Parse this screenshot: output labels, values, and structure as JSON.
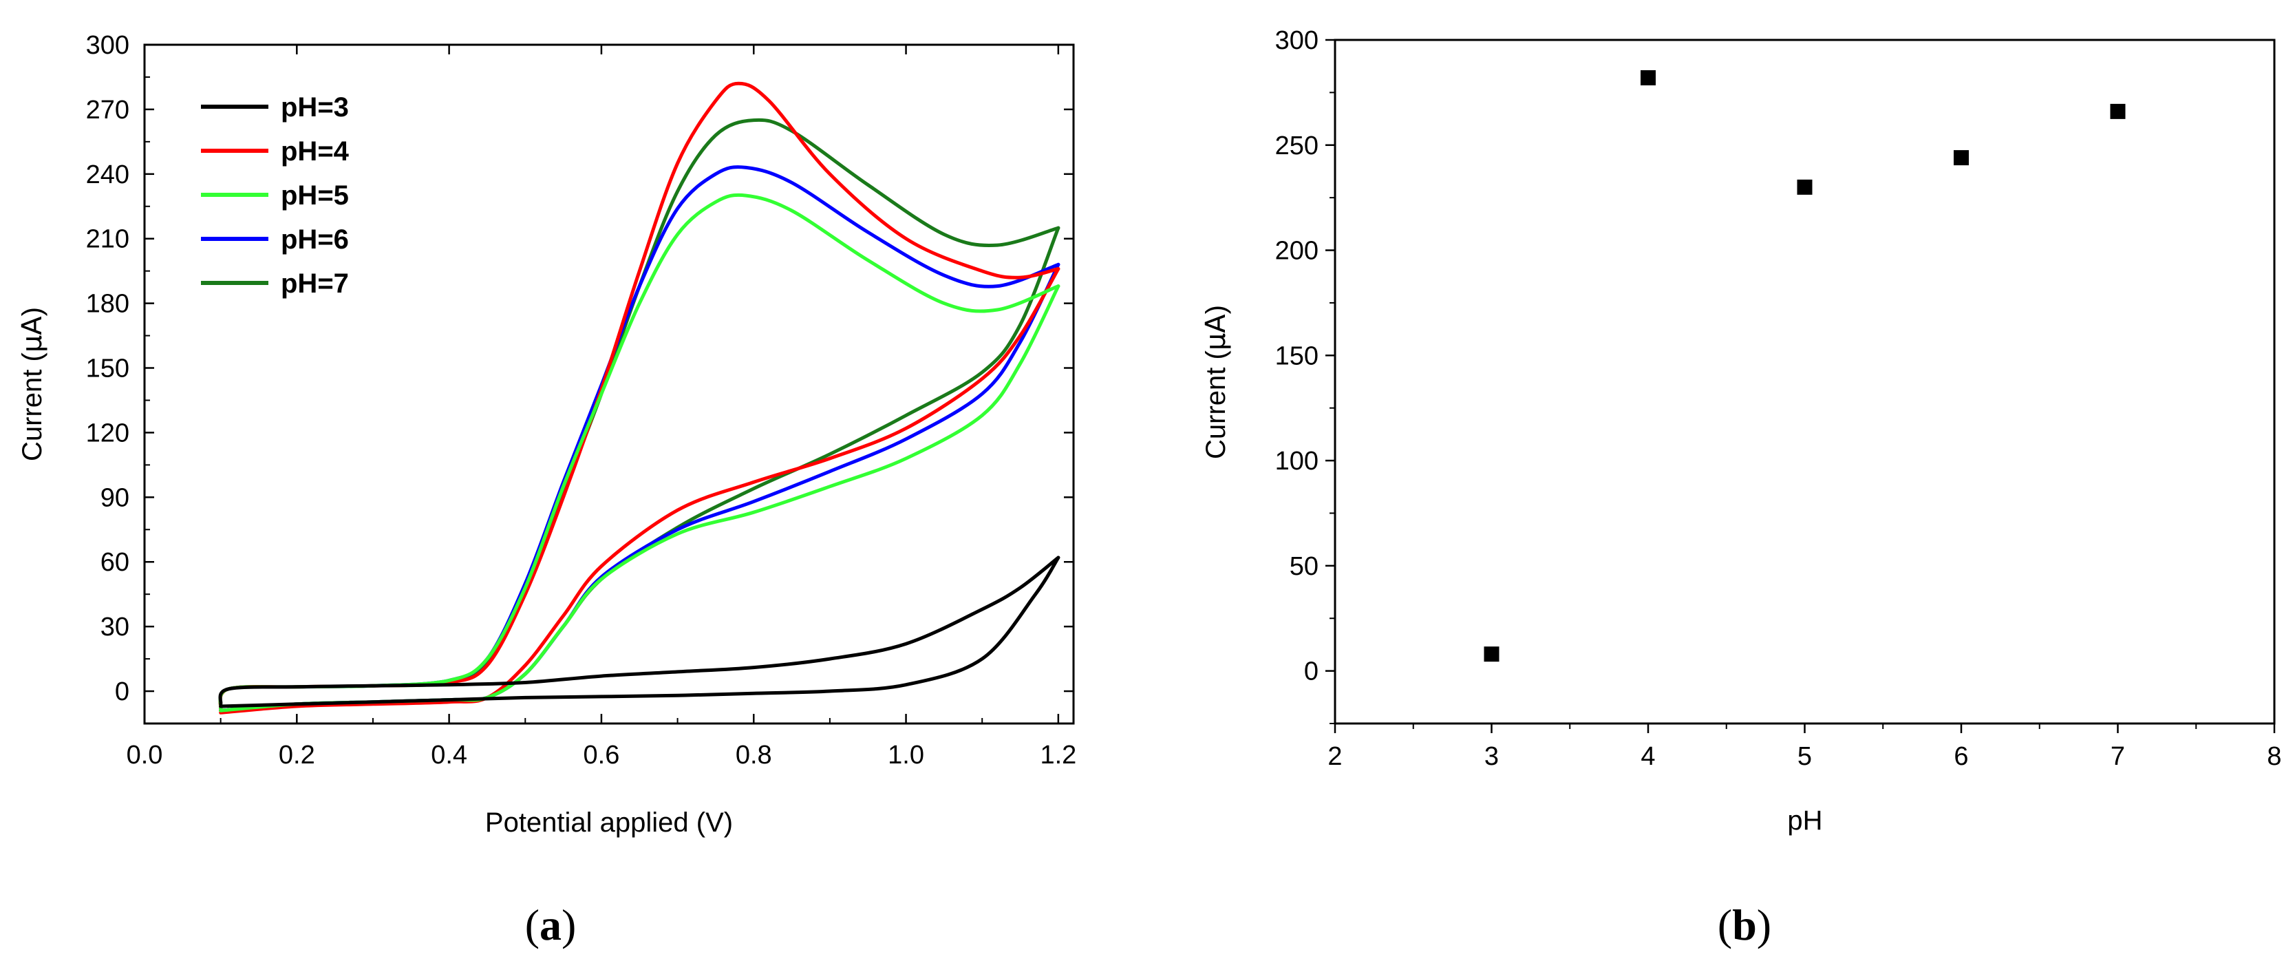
{
  "panels": [
    {
      "label": "a"
    },
    {
      "label": "b"
    }
  ],
  "chart_data": [
    {
      "type": "line",
      "panel": "a",
      "title": "",
      "xlabel": "Potential applied (V)",
      "ylabel_prefix": "Current (",
      "ylabel_unit": "μA",
      "ylabel_suffix": ")",
      "xlim": [
        0.0,
        1.22
      ],
      "ylim": [
        -15,
        300
      ],
      "xticks": [
        "0.0",
        "0.2",
        "0.4",
        "0.6",
        "0.8",
        "1.0",
        "1.2"
      ],
      "yticks": [
        "0",
        "30",
        "60",
        "90",
        "120",
        "150",
        "180",
        "210",
        "240",
        "270",
        "300"
      ],
      "legend_position": "top-left",
      "series": [
        {
          "name": "pH=3",
          "color": "#000000",
          "forward": [
            [
              0.1,
              -6
            ],
            [
              0.11,
              1
            ],
            [
              0.2,
              2
            ],
            [
              0.3,
              2.5
            ],
            [
              0.4,
              3
            ],
            [
              0.5,
              4
            ],
            [
              0.6,
              7
            ],
            [
              0.7,
              9
            ],
            [
              0.8,
              11
            ],
            [
              0.9,
              15
            ],
            [
              1.0,
              22
            ],
            [
              1.1,
              38
            ],
            [
              1.15,
              48
            ],
            [
              1.2,
              62
            ]
          ],
          "reverse": [
            [
              1.2,
              62
            ],
            [
              1.17,
              45
            ],
            [
              1.1,
              15
            ],
            [
              1.0,
              3
            ],
            [
              0.9,
              0
            ],
            [
              0.8,
              -1
            ],
            [
              0.7,
              -2
            ],
            [
              0.6,
              -2.5
            ],
            [
              0.5,
              -3
            ],
            [
              0.4,
              -4
            ],
            [
              0.3,
              -5
            ],
            [
              0.2,
              -6
            ],
            [
              0.1,
              -7
            ]
          ]
        },
        {
          "name": "pH=4",
          "color": "#ff0000",
          "forward": [
            [
              0.1,
              -9
            ],
            [
              0.11,
              1
            ],
            [
              0.2,
              2
            ],
            [
              0.3,
              2.5
            ],
            [
              0.4,
              4
            ],
            [
              0.45,
              12
            ],
            [
              0.5,
              45
            ],
            [
              0.55,
              90
            ],
            [
              0.6,
              140
            ],
            [
              0.65,
              195
            ],
            [
              0.7,
              245
            ],
            [
              0.75,
              274
            ],
            [
              0.78,
              282
            ],
            [
              0.82,
              274
            ],
            [
              0.9,
              240
            ],
            [
              1.0,
              210
            ],
            [
              1.1,
              195
            ],
            [
              1.15,
              192
            ],
            [
              1.2,
              196
            ]
          ],
          "reverse": [
            [
              1.2,
              196
            ],
            [
              1.15,
              165
            ],
            [
              1.1,
              145
            ],
            [
              1.0,
              122
            ],
            [
              0.9,
              108
            ],
            [
              0.8,
              97
            ],
            [
              0.7,
              84
            ],
            [
              0.6,
              58
            ],
            [
              0.55,
              35
            ],
            [
              0.5,
              12
            ],
            [
              0.45,
              -3
            ],
            [
              0.4,
              -5
            ],
            [
              0.3,
              -6
            ],
            [
              0.2,
              -7
            ],
            [
              0.1,
              -10
            ]
          ]
        },
        {
          "name": "pH=5",
          "color": "#33ff33",
          "forward": [
            [
              0.1,
              -8
            ],
            [
              0.11,
              1
            ],
            [
              0.2,
              2
            ],
            [
              0.3,
              2.5
            ],
            [
              0.4,
              5
            ],
            [
              0.45,
              15
            ],
            [
              0.5,
              48
            ],
            [
              0.55,
              95
            ],
            [
              0.6,
              138
            ],
            [
              0.65,
              180
            ],
            [
              0.7,
              212
            ],
            [
              0.75,
              227
            ],
            [
              0.79,
              230
            ],
            [
              0.85,
              223
            ],
            [
              0.95,
              200
            ],
            [
              1.05,
              180
            ],
            [
              1.12,
              177
            ],
            [
              1.2,
              188
            ]
          ],
          "reverse": [
            [
              1.2,
              188
            ],
            [
              1.15,
              152
            ],
            [
              1.1,
              128
            ],
            [
              1.0,
              108
            ],
            [
              0.9,
              95
            ],
            [
              0.8,
              83
            ],
            [
              0.7,
              73
            ],
            [
              0.6,
              52
            ],
            [
              0.55,
              30
            ],
            [
              0.5,
              8
            ],
            [
              0.45,
              -3
            ],
            [
              0.4,
              -4
            ],
            [
              0.3,
              -5
            ],
            [
              0.2,
              -6
            ],
            [
              0.1,
              -9
            ]
          ]
        },
        {
          "name": "pH=6",
          "color": "#0000ff",
          "forward": [
            [
              0.1,
              -8
            ],
            [
              0.11,
              1
            ],
            [
              0.2,
              2
            ],
            [
              0.3,
              2.5
            ],
            [
              0.4,
              5
            ],
            [
              0.45,
              15
            ],
            [
              0.5,
              50
            ],
            [
              0.55,
              97
            ],
            [
              0.6,
              142
            ],
            [
              0.65,
              188
            ],
            [
              0.7,
              224
            ],
            [
              0.75,
              240
            ],
            [
              0.79,
              243
            ],
            [
              0.85,
              236
            ],
            [
              0.95,
              213
            ],
            [
              1.05,
              193
            ],
            [
              1.12,
              188
            ],
            [
              1.2,
              198
            ]
          ],
          "reverse": [
            [
              1.2,
              198
            ],
            [
              1.15,
              162
            ],
            [
              1.1,
              138
            ],
            [
              1.0,
              117
            ],
            [
              0.9,
              102
            ],
            [
              0.8,
              88
            ],
            [
              0.7,
              75
            ],
            [
              0.6,
              53
            ],
            [
              0.55,
              30
            ],
            [
              0.5,
              8
            ],
            [
              0.45,
              -3
            ],
            [
              0.4,
              -4
            ],
            [
              0.3,
              -5
            ],
            [
              0.2,
              -6
            ],
            [
              0.1,
              -9
            ]
          ]
        },
        {
          "name": "pH=7",
          "color": "#1a7a1a",
          "forward": [
            [
              0.1,
              -8
            ],
            [
              0.11,
              1
            ],
            [
              0.2,
              2
            ],
            [
              0.3,
              2.5
            ],
            [
              0.4,
              4
            ],
            [
              0.45,
              13
            ],
            [
              0.5,
              47
            ],
            [
              0.55,
              92
            ],
            [
              0.6,
              138
            ],
            [
              0.65,
              188
            ],
            [
              0.7,
              232
            ],
            [
              0.75,
              258
            ],
            [
              0.8,
              265
            ],
            [
              0.85,
              260
            ],
            [
              0.95,
              235
            ],
            [
              1.05,
              212
            ],
            [
              1.12,
              207
            ],
            [
              1.2,
              215
            ]
          ],
          "reverse": [
            [
              1.2,
              215
            ],
            [
              1.15,
              170
            ],
            [
              1.1,
              148
            ],
            [
              1.0,
              128
            ],
            [
              0.9,
              110
            ],
            [
              0.8,
              94
            ],
            [
              0.7,
              76
            ],
            [
              0.6,
              52
            ],
            [
              0.55,
              30
            ],
            [
              0.5,
              8
            ],
            [
              0.45,
              -3
            ],
            [
              0.4,
              -4
            ],
            [
              0.3,
              -5
            ],
            [
              0.2,
              -6
            ],
            [
              0.1,
              -9
            ]
          ]
        }
      ]
    },
    {
      "type": "scatter",
      "panel": "b",
      "title": "",
      "xlabel": "pH",
      "ylabel_prefix": "Current (",
      "ylabel_unit": "μA",
      "ylabel_suffix": ")",
      "xlim": [
        2,
        8
      ],
      "ylim": [
        -25,
        300
      ],
      "xticks": [
        "2",
        "3",
        "4",
        "5",
        "6",
        "7",
        "8"
      ],
      "yticks": [
        "0",
        "50",
        "100",
        "150",
        "200",
        "250",
        "300"
      ],
      "marker": "square",
      "marker_color": "#000000",
      "x": [
        3,
        4,
        5,
        6,
        7
      ],
      "y": [
        8,
        282,
        230,
        244,
        266
      ]
    }
  ]
}
